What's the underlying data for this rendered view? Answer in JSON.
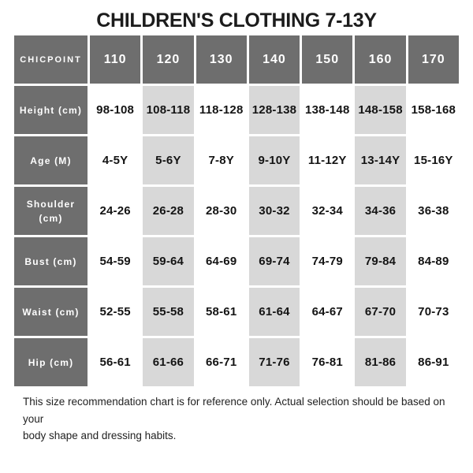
{
  "title": "CHILDREN'S CLOTHING 7-13Y",
  "chart_data": {
    "type": "table",
    "title": "CHILDREN'S CLOTHING 7-13Y",
    "brand": "CHICPOINT",
    "sizes": [
      "110",
      "120",
      "130",
      "140",
      "150",
      "160",
      "170"
    ],
    "rows": [
      {
        "label": "Height (cm)",
        "values": [
          "98-108",
          "108-118",
          "118-128",
          "128-138",
          "138-148",
          "148-158",
          "158-168"
        ]
      },
      {
        "label": "Age (M)",
        "values": [
          "4-5Y",
          "5-6Y",
          "7-8Y",
          "9-10Y",
          "11-12Y",
          "13-14Y",
          "15-16Y"
        ]
      },
      {
        "label": "Shoulder (cm)",
        "values": [
          "24-26",
          "26-28",
          "28-30",
          "30-32",
          "32-34",
          "34-36",
          "36-38"
        ]
      },
      {
        "label": "Bust (cm)",
        "values": [
          "54-59",
          "59-64",
          "64-69",
          "69-74",
          "74-79",
          "79-84",
          "84-89"
        ]
      },
      {
        "label": "Waist (cm)",
        "values": [
          "52-55",
          "55-58",
          "58-61",
          "61-64",
          "64-67",
          "67-70",
          "70-73"
        ]
      },
      {
        "label": "Hip (cm)",
        "values": [
          "56-61",
          "61-66",
          "66-71",
          "71-76",
          "76-81",
          "81-86",
          "86-91"
        ]
      }
    ],
    "layout_hints": {
      "striped_size_columns": [
        "120",
        "140",
        "160"
      ],
      "header_row_and_label_column": "dark gray, white text",
      "cell_gaps": "3px white spacing between all cells"
    }
  },
  "footer": {
    "line1": "This size recommendation chart is for reference only. Actual selection should be based on your",
    "line2": "body shape and dressing habits."
  },
  "colors": {
    "header_bg": "#6e6e6e",
    "header_text": "#ffffff",
    "stripe_bg": "#d8d8d8",
    "cell_text": "#141414",
    "page_bg": "#ffffff"
  }
}
